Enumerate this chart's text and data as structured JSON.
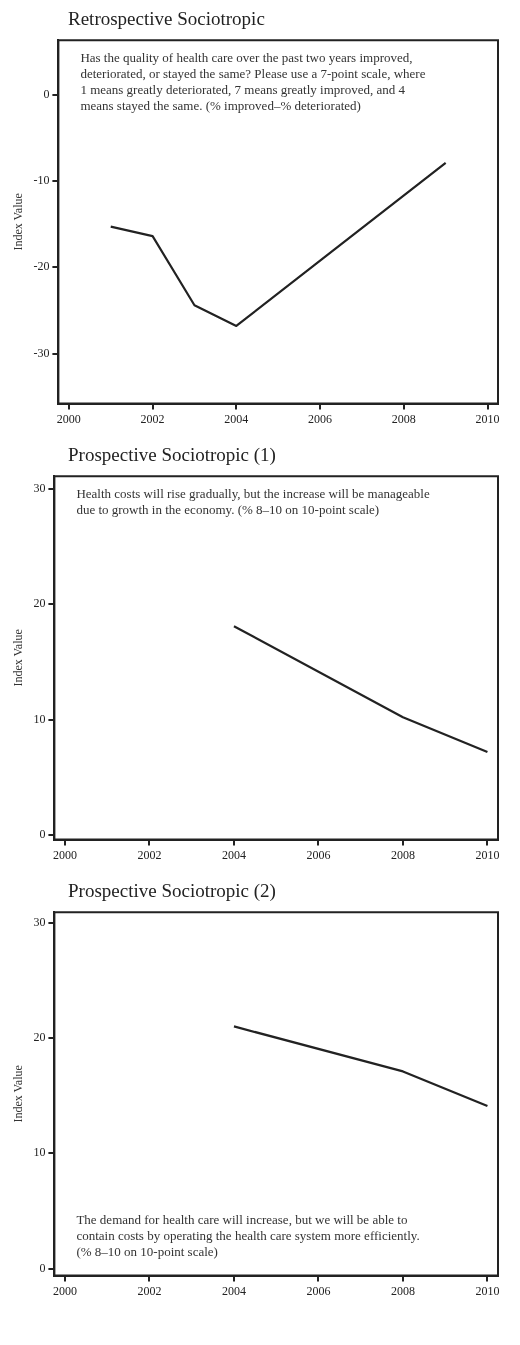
{
  "chart_data": [
    {
      "type": "line",
      "title": "Retrospective Sociotropic",
      "ylabel": "Index Value",
      "x": [
        2001,
        2002,
        2003,
        2004,
        2009
      ],
      "values": [
        -15.3,
        -16.4,
        -24.4,
        -26.8,
        -7.9
      ],
      "color": "#222222",
      "xlim": [
        1999.75,
        2010.25
      ],
      "xticks": [
        2000,
        2002,
        2004,
        2006,
        2008,
        2010
      ],
      "ylim": [
        -35.8,
        6.3
      ],
      "yticks": [
        -30,
        -20,
        -10,
        0
      ],
      "grid": false,
      "legend": false,
      "marker": "none",
      "line_style": "solid",
      "annotations": [
        "Has the quality of health care over the past two years improved, deteriorated, or stayed the same? Please use a 7-point scale, where 1 means greatly deteriorated, 7 means greatly improved, and 4 means stayed the same. (% improved–% deteriorated)"
      ]
    },
    {
      "type": "line",
      "title": "Prospective Sociotropic (1)",
      "ylabel": "Index Value",
      "x": [
        2004,
        2008,
        2010
      ],
      "values": [
        18.1,
        10.2,
        7.2
      ],
      "color": "#222222",
      "xlim": [
        1999.75,
        2010.25
      ],
      "xticks": [
        2000,
        2002,
        2004,
        2006,
        2008,
        2010
      ],
      "ylim": [
        -0.4,
        31.1
      ],
      "yticks": [
        0,
        10,
        20,
        30
      ],
      "grid": false,
      "legend": false,
      "marker": "none",
      "line_style": "solid",
      "annotations": [
        "Health costs will rise gradually, but the increase will be manageable due to growth in the economy. (% 8–10 on 10-point scale)"
      ]
    },
    {
      "type": "line",
      "title": "Prospective Sociotropic (2)",
      "ylabel": "Index Value",
      "x": [
        2004,
        2008,
        2010
      ],
      "values": [
        21.0,
        17.1,
        14.1
      ],
      "color": "#222222",
      "xlim": [
        1999.75,
        2010.25
      ],
      "xticks": [
        2000,
        2002,
        2004,
        2006,
        2008,
        2010
      ],
      "ylim": [
        -0.6,
        30.9
      ],
      "yticks": [
        0,
        10,
        20,
        30
      ],
      "grid": false,
      "legend": false,
      "marker": "none",
      "line_style": "solid",
      "annotations": [
        "The demand for health care will increase, but we will be able to contain costs by operating the health care system more efficiently. (% 8–10 on 10-point scale)"
      ]
    }
  ]
}
